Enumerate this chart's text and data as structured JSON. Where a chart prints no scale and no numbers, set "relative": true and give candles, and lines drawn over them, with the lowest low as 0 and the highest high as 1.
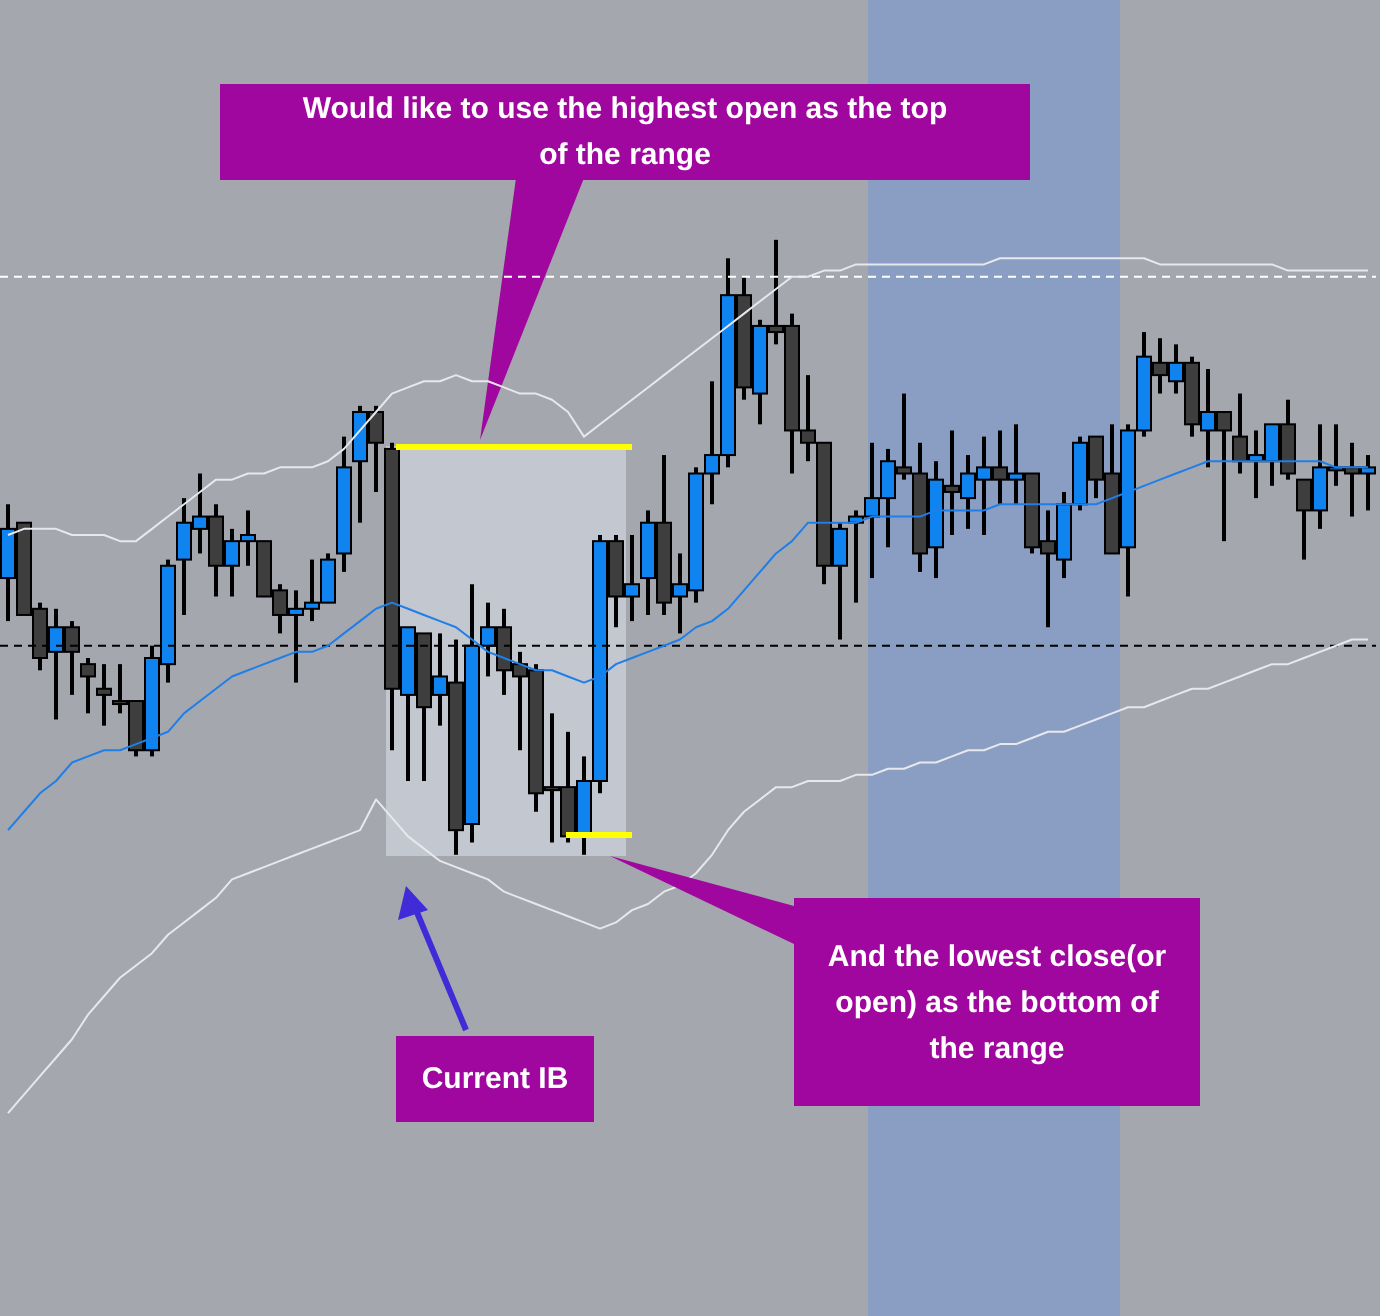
{
  "chart_data": {
    "type": "candlestick",
    "relative": true,
    "categories": [
      null,
      null,
      null,
      null,
      null,
      null,
      null,
      null,
      null,
      null,
      null,
      null,
      null,
      null,
      null,
      null,
      null,
      null,
      null,
      null,
      null,
      null,
      null,
      null,
      null,
      null,
      null,
      null,
      null,
      null,
      null,
      null,
      null,
      null,
      null,
      null,
      null,
      null,
      null,
      null,
      null,
      null,
      null,
      null,
      null,
      null,
      null,
      null,
      null,
      null,
      null,
      null,
      null,
      null,
      null,
      null,
      null,
      null,
      null,
      null,
      null,
      null,
      null,
      null,
      null,
      null,
      null,
      null,
      null,
      null,
      null,
      null,
      null,
      null,
      null,
      null,
      null,
      null,
      null,
      null,
      null,
      null,
      null,
      null,
      null,
      null
    ],
    "ohlc": [
      [
        0.45,
        0.57,
        0.38,
        0.53
      ],
      [
        0.54,
        0.54,
        0.39,
        0.39
      ],
      [
        0.4,
        0.41,
        0.3,
        0.32
      ],
      [
        0.33,
        0.4,
        0.22,
        0.37
      ],
      [
        0.37,
        0.38,
        0.26,
        0.33
      ],
      [
        0.31,
        0.32,
        0.23,
        0.29
      ],
      [
        0.27,
        0.31,
        0.21,
        0.26
      ],
      [
        0.25,
        0.31,
        0.23,
        0.25
      ],
      [
        0.25,
        0.25,
        0.16,
        0.17
      ],
      [
        0.17,
        0.34,
        0.16,
        0.32
      ],
      [
        0.31,
        0.48,
        0.28,
        0.47
      ],
      [
        0.48,
        0.58,
        0.39,
        0.54
      ],
      [
        0.53,
        0.62,
        0.49,
        0.55
      ],
      [
        0.55,
        0.57,
        0.42,
        0.47
      ],
      [
        0.47,
        0.53,
        0.42,
        0.51
      ],
      [
        0.51,
        0.56,
        0.47,
        0.52
      ],
      [
        0.51,
        0.51,
        0.42,
        0.42
      ],
      [
        0.43,
        0.44,
        0.36,
        0.39
      ],
      [
        0.39,
        0.43,
        0.28,
        0.4
      ],
      [
        0.4,
        0.48,
        0.38,
        0.41
      ],
      [
        0.41,
        0.49,
        0.41,
        0.48
      ],
      [
        0.49,
        0.68,
        0.46,
        0.63
      ],
      [
        0.64,
        0.73,
        0.54,
        0.72
      ],
      [
        0.72,
        0.73,
        0.59,
        0.67
      ],
      [
        0.66,
        0.67,
        0.17,
        0.27
      ],
      [
        0.26,
        0.37,
        0.12,
        0.37
      ],
      [
        0.36,
        0.36,
        0.12,
        0.24
      ],
      [
        0.26,
        0.36,
        0.21,
        0.29
      ],
      [
        0.28,
        0.35,
        0,
        0.04
      ],
      [
        0.05,
        0.44,
        0.02,
        0.34
      ],
      [
        0.34,
        0.41,
        0.29,
        0.37
      ],
      [
        0.37,
        0.4,
        0.26,
        0.3
      ],
      [
        0.31,
        0.33,
        0.17,
        0.29
      ],
      [
        0.3,
        0.31,
        0.07,
        0.1
      ],
      [
        0.11,
        0.23,
        0.02,
        0.11
      ],
      [
        0.11,
        0.2,
        0.02,
        0.03
      ],
      [
        0.03,
        0.16,
        0,
        0.12
      ],
      [
        0.12,
        0.52,
        0.1,
        0.51
      ],
      [
        0.51,
        0.52,
        0.37,
        0.42
      ],
      [
        0.42,
        0.52,
        0.38,
        0.44
      ],
      [
        0.45,
        0.56,
        0.39,
        0.54
      ],
      [
        0.54,
        0.65,
        0.39,
        0.41
      ],
      [
        0.42,
        0.49,
        0.36,
        0.44
      ],
      [
        0.43,
        0.63,
        0.41,
        0.62
      ],
      [
        0.62,
        0.77,
        0.57,
        0.65
      ],
      [
        0.65,
        0.97,
        0.63,
        0.91
      ],
      [
        0.91,
        0.94,
        0.74,
        0.76
      ],
      [
        0.75,
        0.87,
        0.7,
        0.86
      ],
      [
        0.86,
        1,
        0.83,
        0.85
      ],
      [
        0.86,
        0.88,
        0.62,
        0.69
      ],
      [
        0.69,
        0.78,
        0.64,
        0.67
      ],
      [
        0.67,
        0.67,
        0.44,
        0.47
      ],
      [
        0.47,
        0.54,
        0.35,
        0.53
      ],
      [
        0.54,
        0.56,
        0.41,
        0.55
      ],
      [
        0.55,
        0.67,
        0.45,
        0.58
      ],
      [
        0.58,
        0.66,
        0.5,
        0.64
      ],
      [
        0.63,
        0.75,
        0.61,
        0.62
      ],
      [
        0.62,
        0.67,
        0.46,
        0.49
      ],
      [
        0.5,
        0.64,
        0.45,
        0.61
      ],
      [
        0.6,
        0.69,
        0.52,
        0.59
      ],
      [
        0.58,
        0.65,
        0.53,
        0.62
      ],
      [
        0.61,
        0.68,
        0.52,
        0.63
      ],
      [
        0.63,
        0.69,
        0.57,
        0.61
      ],
      [
        0.61,
        0.7,
        0.57,
        0.62
      ],
      [
        0.62,
        0.62,
        0.49,
        0.5
      ],
      [
        0.51,
        0.56,
        0.37,
        0.49
      ],
      [
        0.48,
        0.59,
        0.45,
        0.57
      ],
      [
        0.57,
        0.68,
        0.56,
        0.67
      ],
      [
        0.68,
        0.68,
        0.58,
        0.61
      ],
      [
        0.62,
        0.7,
        0.49,
        0.49
      ],
      [
        0.5,
        0.7,
        0.42,
        0.69
      ],
      [
        0.69,
        0.85,
        0.68,
        0.81
      ],
      [
        0.8,
        0.84,
        0.75,
        0.78
      ],
      [
        0.77,
        0.83,
        0.75,
        0.8
      ],
      [
        0.8,
        0.81,
        0.68,
        0.7
      ],
      [
        0.69,
        0.79,
        0.63,
        0.72
      ],
      [
        0.72,
        0.72,
        0.51,
        0.69
      ],
      [
        0.68,
        0.75,
        0.62,
        0.64
      ],
      [
        0.64,
        0.69,
        0.58,
        0.65
      ],
      [
        0.64,
        0.7,
        0.6,
        0.7
      ],
      [
        0.7,
        0.74,
        0.61,
        0.62
      ],
      [
        0.61,
        0.61,
        0.48,
        0.56
      ],
      [
        0.56,
        0.7,
        0.53,
        0.63
      ],
      [
        0.63,
        0.7,
        0.6,
        0.63
      ],
      [
        0.63,
        0.67,
        0.55,
        0.62
      ],
      [
        0.62,
        0.65,
        0.56,
        0.63
      ]
    ],
    "colors": [
      "#0f84f0",
      "#3e3e3e",
      "#3e3e3e",
      "#0f84f0",
      "#3e3e3e",
      "#3e3e3e",
      "#3e3e3e",
      "#3e3e3e",
      "#3e3e3e",
      "#0f84f0",
      "#0f84f0",
      "#0f84f0",
      "#0f84f0",
      "#3e3e3e",
      "#0f84f0",
      "#0f84f0",
      "#3e3e3e",
      "#3e3e3e",
      "#0f84f0",
      "#0f84f0",
      "#0f84f0",
      "#0f84f0",
      "#0f84f0",
      "#3e3e3e",
      "#3e3e3e",
      "#0f84f0",
      "#3e3e3e",
      "#0f84f0",
      "#3e3e3e",
      "#0f84f0",
      "#0f84f0",
      "#3e3e3e",
      "#3e3e3e",
      "#3e3e3e",
      "#3e3e3e",
      "#3e3e3e",
      "#0f84f0",
      "#0f84f0",
      "#3e3e3e",
      "#0f84f0",
      "#0f84f0",
      "#3e3e3e",
      "#0f84f0",
      "#0f84f0",
      "#0f84f0",
      "#0f84f0",
      "#3e3e3e",
      "#0f84f0",
      "#3e3e3e",
      "#3e3e3e",
      "#3e3e3e",
      "#3e3e3e",
      "#0f84f0",
      "#0f84f0",
      "#0f84f0",
      "#0f84f0",
      "#3e3e3e",
      "#3e3e3e",
      "#0f84f0",
      "#3e3e3e",
      "#0f84f0",
      "#0f84f0",
      "#3e3e3e",
      "#0f84f0",
      "#3e3e3e",
      "#3e3e3e",
      "#0f84f0",
      "#0f84f0",
      "#3e3e3e",
      "#3e3e3e",
      "#0f84f0",
      "#0f84f0",
      "#3e3e3e",
      "#0f84f0",
      "#3e3e3e",
      "#0f84f0",
      "#3e3e3e",
      "#3e3e3e",
      "#0f84f0",
      "#0f84f0",
      "#3e3e3e",
      "#3e3e3e",
      "#0f84f0",
      "#0f84f0",
      "#3e3e3e",
      "#0f84f0"
    ],
    "series": [
      {
        "type": "line",
        "color": "#1e7fe8",
        "values": [
          0.04,
          0.07,
          0.1,
          0.12,
          0.15,
          0.16,
          0.17,
          0.17,
          0.18,
          0.19,
          0.2,
          0.23,
          0.25,
          0.27,
          0.29,
          0.3,
          0.31,
          0.32,
          0.33,
          0.33,
          0.34,
          0.36,
          0.38,
          0.4,
          0.41,
          0.4,
          0.39,
          0.38,
          0.37,
          0.35,
          0.33,
          0.32,
          0.31,
          0.3,
          0.3,
          0.29,
          0.28,
          0.29,
          0.31,
          0.32,
          0.33,
          0.34,
          0.35,
          0.37,
          0.38,
          0.4,
          0.43,
          0.46,
          0.49,
          0.51,
          0.54,
          0.54,
          0.54,
          0.54,
          0.55,
          0.55,
          0.55,
          0.55,
          0.56,
          0.56,
          0.56,
          0.56,
          0.57,
          0.57,
          0.57,
          0.57,
          0.57,
          0.57,
          0.57,
          0.58,
          0.59,
          0.6,
          0.61,
          0.62,
          0.63,
          0.64,
          0.64,
          0.64,
          0.64,
          0.64,
          0.64,
          0.64,
          0.64,
          0.63,
          0.63,
          0.63
        ]
      },
      {
        "type": "line",
        "color": "#e6e8ee",
        "values": [
          0.52,
          0.53,
          0.53,
          0.53,
          0.52,
          0.52,
          0.52,
          0.51,
          0.51,
          0.53,
          0.55,
          0.57,
          0.59,
          0.61,
          0.61,
          0.62,
          0.62,
          0.63,
          0.63,
          0.63,
          0.64,
          0.66,
          0.69,
          0.72,
          0.75,
          0.76,
          0.77,
          0.77,
          0.78,
          0.77,
          0.77,
          0.76,
          0.75,
          0.75,
          0.74,
          0.72,
          0.68,
          0.7,
          0.72,
          0.74,
          0.76,
          0.78,
          0.8,
          0.82,
          0.84,
          0.86,
          0.88,
          0.9,
          0.92,
          0.94,
          0.94,
          0.95,
          0.95,
          0.96,
          0.96,
          0.96,
          0.96,
          0.96,
          0.96,
          0.96,
          0.96,
          0.96,
          0.97,
          0.97,
          0.97,
          0.97,
          0.97,
          0.97,
          0.97,
          0.97,
          0.97,
          0.97,
          0.96,
          0.96,
          0.96,
          0.96,
          0.96,
          0.96,
          0.96,
          0.96,
          0.95,
          0.95,
          0.95,
          0.95,
          0.95,
          0.95
        ]
      },
      {
        "type": "line",
        "color": "#e6e8ee",
        "values": [
          -0.42,
          -0.39,
          -0.36,
          -0.33,
          -0.3,
          -0.26,
          -0.23,
          -0.2,
          -0.18,
          -0.16,
          -0.13,
          -0.11,
          -0.09,
          -0.07,
          -0.04,
          -0.03,
          -0.02,
          -0.01,
          0.0,
          0.01,
          0.02,
          0.03,
          0.04,
          0.09,
          0.06,
          0.03,
          0.01,
          -0.01,
          -0.02,
          -0.03,
          -0.04,
          -0.06,
          -0.07,
          -0.08,
          -0.09,
          -0.1,
          -0.11,
          -0.12,
          -0.11,
          -0.09,
          -0.08,
          -0.06,
          -0.05,
          -0.03,
          0.0,
          0.04,
          0.07,
          0.09,
          0.11,
          0.11,
          0.12,
          0.12,
          0.12,
          0.13,
          0.13,
          0.14,
          0.14,
          0.15,
          0.15,
          0.16,
          0.17,
          0.17,
          0.18,
          0.18,
          0.19,
          0.2,
          0.2,
          0.21,
          0.22,
          0.23,
          0.24,
          0.24,
          0.25,
          0.26,
          0.27,
          0.27,
          0.28,
          0.29,
          0.3,
          0.31,
          0.31,
          0.32,
          0.33,
          0.34,
          0.35,
          0.35
        ]
      }
    ],
    "ref_lines": [
      {
        "axis": "y",
        "value": 0.94,
        "color": "#ffffff",
        "line_style": "dashed"
      },
      {
        "axis": "y",
        "value": 0.34,
        "color": "#000000",
        "line_style": "dashed"
      }
    ],
    "annotations": [
      "Would like to use the highest open as the top of the range",
      "And the lowest close(or open) as the bottom of the range",
      "Current IB"
    ]
  }
}
